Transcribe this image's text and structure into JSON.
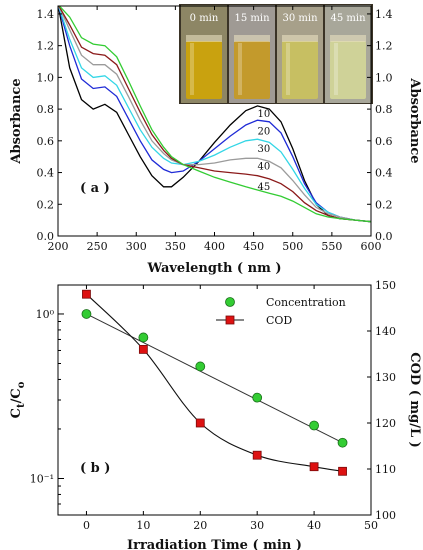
{
  "chart_data": [
    {
      "type": "line",
      "panel_label": "( a )",
      "xlabel": "Wavelength ( nm )",
      "ylabel": "Absorbance",
      "ylabel_right": "Absorbance",
      "xlim": [
        200,
        600
      ],
      "ylim": [
        0,
        1.45
      ],
      "x_ticks": [
        200,
        250,
        300,
        350,
        400,
        450,
        500,
        550,
        600
      ],
      "y_ticks": [
        0,
        0.2,
        0.4,
        0.6,
        0.8,
        1.0,
        1.2,
        1.4
      ],
      "y_tick_labels": [
        "0.0",
        "0.2",
        "0.4",
        "0.6",
        "0.8",
        "1.0",
        "1.2",
        "1.4"
      ],
      "series": [
        {
          "name": "0",
          "color": "#000000",
          "x": [
            200,
            215,
            230,
            245,
            260,
            275,
            290,
            305,
            320,
            335,
            345,
            360,
            380,
            400,
            420,
            440,
            455,
            470,
            485,
            500,
            515,
            530,
            545,
            560,
            580,
            600
          ],
          "y": [
            1.46,
            1.06,
            0.86,
            0.8,
            0.83,
            0.78,
            0.64,
            0.5,
            0.38,
            0.31,
            0.31,
            0.37,
            0.47,
            0.59,
            0.7,
            0.79,
            0.82,
            0.8,
            0.72,
            0.55,
            0.35,
            0.2,
            0.13,
            0.11,
            0.1,
            0.09
          ]
        },
        {
          "name": "10",
          "color": "#1f2bd6",
          "x": [
            200,
            215,
            230,
            245,
            260,
            275,
            290,
            305,
            320,
            335,
            345,
            360,
            380,
            400,
            420,
            440,
            455,
            470,
            485,
            500,
            515,
            530,
            545,
            560,
            580,
            600
          ],
          "y": [
            1.46,
            1.2,
            0.99,
            0.93,
            0.94,
            0.88,
            0.74,
            0.6,
            0.48,
            0.42,
            0.4,
            0.41,
            0.47,
            0.55,
            0.63,
            0.7,
            0.73,
            0.72,
            0.65,
            0.5,
            0.33,
            0.21,
            0.15,
            0.12,
            0.1,
            0.09
          ]
        },
        {
          "name": "20",
          "color": "#33d6e6",
          "x": [
            200,
            215,
            230,
            245,
            260,
            275,
            290,
            305,
            320,
            335,
            345,
            360,
            380,
            400,
            420,
            440,
            455,
            470,
            485,
            500,
            515,
            530,
            545,
            560,
            580,
            600
          ],
          "y": [
            1.46,
            1.24,
            1.06,
            1.0,
            1.01,
            0.95,
            0.81,
            0.67,
            0.56,
            0.49,
            0.46,
            0.45,
            0.47,
            0.51,
            0.56,
            0.6,
            0.61,
            0.59,
            0.53,
            0.42,
            0.3,
            0.2,
            0.15,
            0.12,
            0.1,
            0.09
          ]
        },
        {
          "name": "30",
          "color": "#9b9b9b",
          "x": [
            200,
            215,
            230,
            245,
            260,
            275,
            290,
            305,
            320,
            335,
            345,
            360,
            380,
            400,
            420,
            440,
            455,
            470,
            485,
            500,
            515,
            530,
            545,
            560,
            580,
            600
          ],
          "y": [
            1.46,
            1.3,
            1.14,
            1.08,
            1.08,
            1.02,
            0.88,
            0.73,
            0.6,
            0.52,
            0.48,
            0.45,
            0.45,
            0.46,
            0.48,
            0.49,
            0.49,
            0.47,
            0.43,
            0.35,
            0.26,
            0.18,
            0.14,
            0.12,
            0.1,
            0.09
          ]
        },
        {
          "name": "40",
          "color": "#8b1a1a",
          "x": [
            200,
            215,
            230,
            245,
            260,
            275,
            290,
            305,
            320,
            335,
            345,
            360,
            380,
            400,
            420,
            440,
            455,
            470,
            485,
            500,
            515,
            530,
            545,
            560,
            580,
            600
          ],
          "y": [
            1.46,
            1.33,
            1.19,
            1.15,
            1.14,
            1.08,
            0.93,
            0.78,
            0.64,
            0.54,
            0.49,
            0.45,
            0.43,
            0.41,
            0.4,
            0.39,
            0.38,
            0.36,
            0.33,
            0.28,
            0.21,
            0.16,
            0.13,
            0.11,
            0.1,
            0.09
          ]
        },
        {
          "name": "45",
          "color": "#33cc33",
          "x": [
            200,
            215,
            230,
            245,
            260,
            275,
            290,
            305,
            320,
            335,
            345,
            360,
            380,
            400,
            420,
            440,
            455,
            470,
            485,
            500,
            515,
            530,
            545,
            560,
            580,
            600
          ],
          "y": [
            1.46,
            1.38,
            1.25,
            1.21,
            1.2,
            1.13,
            0.98,
            0.82,
            0.67,
            0.56,
            0.5,
            0.45,
            0.41,
            0.37,
            0.34,
            0.31,
            0.29,
            0.27,
            0.25,
            0.22,
            0.18,
            0.14,
            0.12,
            0.11,
            0.1,
            0.09
          ]
        }
      ],
      "curve_labels": [
        {
          "text": "0 min",
          "x": 464,
          "y": 0.86
        },
        {
          "text": "10",
          "x": 455,
          "y": 0.75
        },
        {
          "text": "20",
          "x": 455,
          "y": 0.64
        },
        {
          "text": "30",
          "x": 455,
          "y": 0.53
        },
        {
          "text": "40",
          "x": 455,
          "y": 0.42
        },
        {
          "text": "45",
          "x": 455,
          "y": 0.29
        }
      ],
      "inset": {
        "vials": [
          {
            "label": "0 min",
            "liquid": "#c9a20f",
            "glass": "#8d8665"
          },
          {
            "label": "15 min",
            "liquid": "#c39a2c",
            "glass": "#9f9a94"
          },
          {
            "label": "30 min",
            "liquid": "#c7bf62",
            "glass": "#a7a08a"
          },
          {
            "label": "45 min",
            "liquid": "#cfd298",
            "glass": "#a8a79a"
          }
        ]
      }
    },
    {
      "type": "line",
      "panel_label": "( b )",
      "xlabel": "Irradiation Time ( min )",
      "ylabel": "Ct/Co",
      "ylabel_main": "C",
      "ylabel_sub1": "t",
      "ylabel_sep": "/C",
      "ylabel_sub2": "o",
      "ylabel_right": "COD ( mg/L )",
      "xlim": [
        -5,
        50
      ],
      "x_ticks": [
        0,
        10,
        20,
        30,
        40,
        50
      ],
      "y_scale": "log",
      "ylim": [
        0.06,
        1.5
      ],
      "y_ticks": [
        0.1,
        1.0
      ],
      "y_tick_labels": [
        "10⁻¹",
        "10⁰"
      ],
      "y2lim": [
        100,
        150
      ],
      "y2_ticks": [
        100,
        110,
        120,
        130,
        140,
        150
      ],
      "legend_position": "top-right",
      "series": [
        {
          "name": "Concentration",
          "color": "#33cc33",
          "marker": "circle",
          "axis": "left",
          "x": [
            0,
            10,
            20,
            30,
            40,
            45
          ],
          "y": [
            1.0,
            0.72,
            0.48,
            0.31,
            0.21,
            0.165
          ]
        },
        {
          "name": "COD",
          "color": "#dd1111",
          "marker": "square",
          "axis": "right",
          "x": [
            0,
            10,
            20,
            30,
            40,
            45
          ],
          "y": [
            148,
            136,
            120,
            113,
            110.5,
            109.5
          ]
        }
      ]
    }
  ]
}
